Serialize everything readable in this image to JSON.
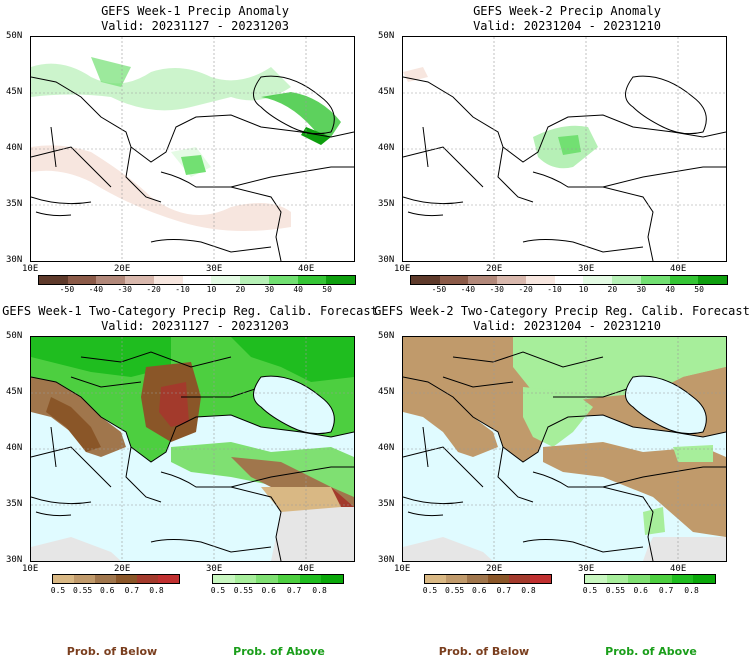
{
  "panels": [
    {
      "title": "GEFS Week-1 Precip Anomaly",
      "valid": "Valid: 20231127 - 20231203"
    },
    {
      "title": "GEFS Week-2 Precip Anomaly",
      "valid": "Valid: 20231204 - 20231210"
    },
    {
      "title": "GEFS Week-1 Two-Category Precip Reg. Calib. Forecast",
      "valid": "Valid: 20231127 - 20231203"
    },
    {
      "title": "GEFS Week-2 Two-Category Precip Reg. Calib. Forecast",
      "valid": "Valid: 20231204 - 20231210"
    }
  ],
  "axes": {
    "lat_labels": [
      "50N",
      "45N",
      "40N",
      "35N",
      "30N"
    ],
    "lon_labels": [
      "10E",
      "20E",
      "30E",
      "40E"
    ]
  },
  "anomaly_colorbar": {
    "ticks": [
      "-50",
      "-40",
      "-30",
      "-20",
      "-10",
      "10",
      "20",
      "30",
      "40",
      "50"
    ],
    "colors": [
      "#5e3a2b",
      "#8b5a48",
      "#b2887a",
      "#d9b8ad",
      "#f7e6df",
      "#ffffff",
      "#e4fbe4",
      "#b6f0b6",
      "#72e072",
      "#35c535",
      "#0e9e0e"
    ]
  },
  "prob_colorbars": {
    "below_ticks": [
      "0.5",
      "0.55",
      "0.6",
      "0.7",
      "0.8"
    ],
    "above_ticks": [
      "0.5",
      "0.55",
      "0.6",
      "0.7",
      "0.8"
    ],
    "below_colors": [
      "#d9b884",
      "#c09a6b",
      "#a0764c",
      "#8a5628",
      "#a33a2c",
      "#c03030"
    ],
    "above_colors": [
      "#c8f7c0",
      "#a7ee9b",
      "#7fe072",
      "#4dcf40",
      "#1fbd1f",
      "#0aa80a"
    ],
    "below_label": "Prob. of Below",
    "above_label": "Prob. of Above",
    "below_label_color": "#7a3e1e",
    "above_label_color": "#1a9e1a"
  },
  "map_colors": {
    "sea_prob": "#e0fbff",
    "land_default": "#ffffff",
    "no_forecast": "#e6e6e6",
    "grid": "#9a9a9a"
  }
}
